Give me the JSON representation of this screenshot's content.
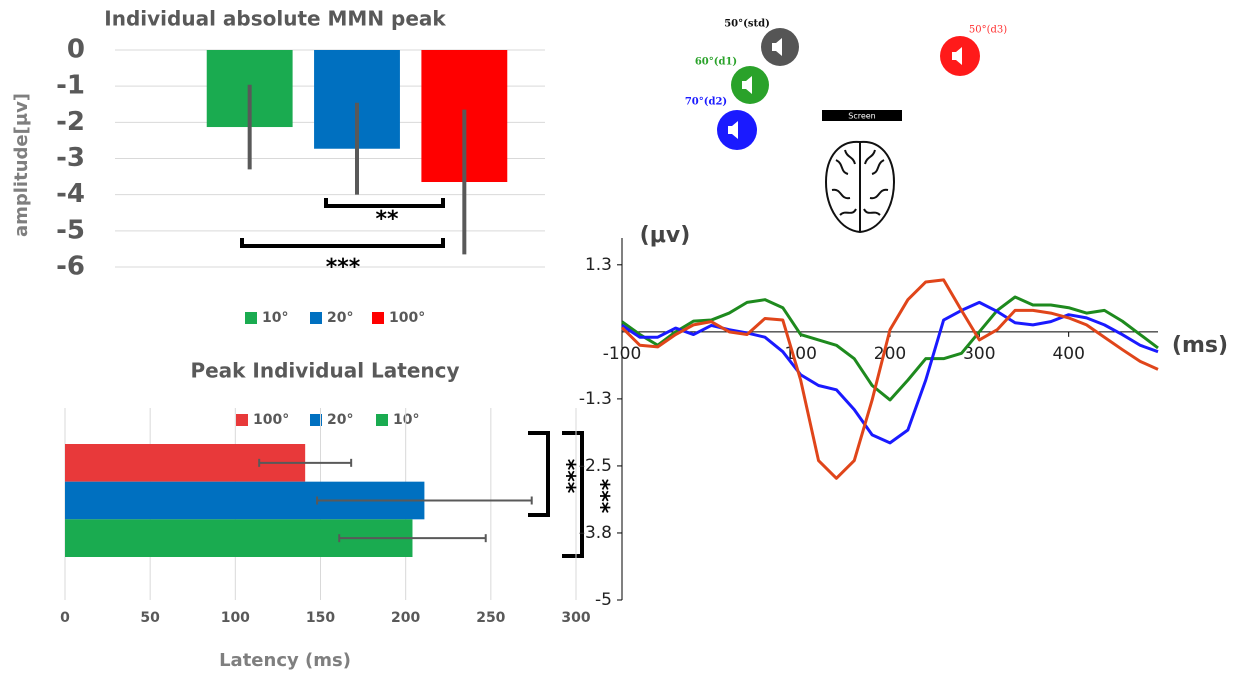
{
  "chart_data": [
    {
      "type": "bar",
      "orientation": "vertical",
      "title": "Individual absolute MMN peak",
      "y_label": "amplitude[μv]",
      "categories": [
        "10°",
        "20°",
        "100°"
      ],
      "values": [
        -2.13,
        -2.73,
        -3.65
      ],
      "errors": [
        1.17,
        1.27,
        2.0
      ],
      "colors": [
        "#1aab50",
        "#0070c0",
        "#ff0000"
      ],
      "ylim": [
        -6,
        0
      ],
      "yticks": [
        0,
        -1,
        -2,
        -3,
        -4,
        -5,
        -6
      ],
      "grid": true,
      "annotations": [
        "**",
        "***"
      ]
    },
    {
      "type": "bar",
      "orientation": "horizontal",
      "title": "Peak Individual Latency",
      "x_label": "Latency (ms)",
      "categories": [
        "100°",
        "20°",
        "10°"
      ],
      "values": [
        141,
        211,
        204
      ],
      "errors": [
        27,
        63,
        43
      ],
      "colors": [
        "#e8393a",
        "#0070c0",
        "#1aab50"
      ],
      "xlim": [
        0,
        300
      ],
      "xticks": [
        0,
        50,
        100,
        150,
        200,
        250,
        300
      ],
      "grid": true,
      "annotations": [
        "***",
        "***"
      ]
    },
    {
      "type": "line",
      "y_label": "(μv)",
      "x_label": "(ms)",
      "x": [
        -100,
        -80,
        -60,
        -40,
        -20,
        0,
        20,
        40,
        60,
        80,
        100,
        120,
        140,
        160,
        180,
        200,
        220,
        240,
        260,
        280,
        300,
        320,
        340,
        360,
        380,
        400,
        420,
        440,
        460,
        480,
        500
      ],
      "series": [
        {
          "color": "#1e8a1e",
          "values": [
            0.19,
            -0.05,
            -0.25,
            0,
            0.2,
            0.22,
            0.35,
            0.55,
            0.6,
            0.45,
            -0.05,
            -0.15,
            -0.25,
            -0.5,
            -1,
            -1.27,
            -0.9,
            -0.5,
            -0.5,
            -0.4,
            0,
            0.4,
            0.65,
            0.5,
            0.5,
            0.45,
            0.35,
            0.4,
            0.2,
            -0.05,
            -0.3
          ]
        },
        {
          "color": "#1a1aff",
          "values": [
            0.12,
            -0.1,
            -0.1,
            0.07,
            -0.05,
            0.12,
            0.04,
            -0.02,
            -0.1,
            -0.37,
            -0.8,
            -1,
            -1.08,
            -1.45,
            -1.92,
            -2.07,
            -1.83,
            -0.9,
            0.22,
            0.4,
            0.55,
            0.38,
            0.17,
            0.13,
            0.19,
            0.32,
            0.26,
            0.13,
            -0.05,
            -0.25,
            -0.37
          ]
        },
        {
          "color": "#e0451a",
          "values": [
            0.08,
            -0.25,
            -0.28,
            -0.05,
            0.13,
            0.19,
            0,
            -0.05,
            0.25,
            0.22,
            -0.9,
            -2.4,
            -2.73,
            -2.4,
            -1.27,
            0.04,
            0.6,
            0.93,
            0.97,
            0.4,
            -0.15,
            0.04,
            0.4,
            0.4,
            0.35,
            0.26,
            0.13,
            -0.1,
            -0.33,
            -0.55,
            -0.7
          ]
        }
      ],
      "xlim": [
        -100,
        500
      ],
      "xticks": [
        -100,
        100,
        200,
        300,
        400
      ],
      "ylim": [
        -5,
        1.75
      ],
      "yticks": [
        {
          "value": 1.25,
          "label": "1.3"
        },
        {
          "value": -1.25,
          "label": "-1.3"
        },
        -2.5,
        {
          "value": -3.75,
          "label": "-3.8"
        },
        -5
      ]
    }
  ],
  "diagram": {
    "speakers": [
      {
        "label": "50°(std)",
        "color": "#111111"
      },
      {
        "label": "60°(d1)",
        "color": "#2aa22a"
      },
      {
        "label": "70°(d2)",
        "color": "#1a1aff"
      },
      {
        "label": "50°(d3)",
        "color": "#ff3030"
      }
    ],
    "screen": "Screen"
  }
}
